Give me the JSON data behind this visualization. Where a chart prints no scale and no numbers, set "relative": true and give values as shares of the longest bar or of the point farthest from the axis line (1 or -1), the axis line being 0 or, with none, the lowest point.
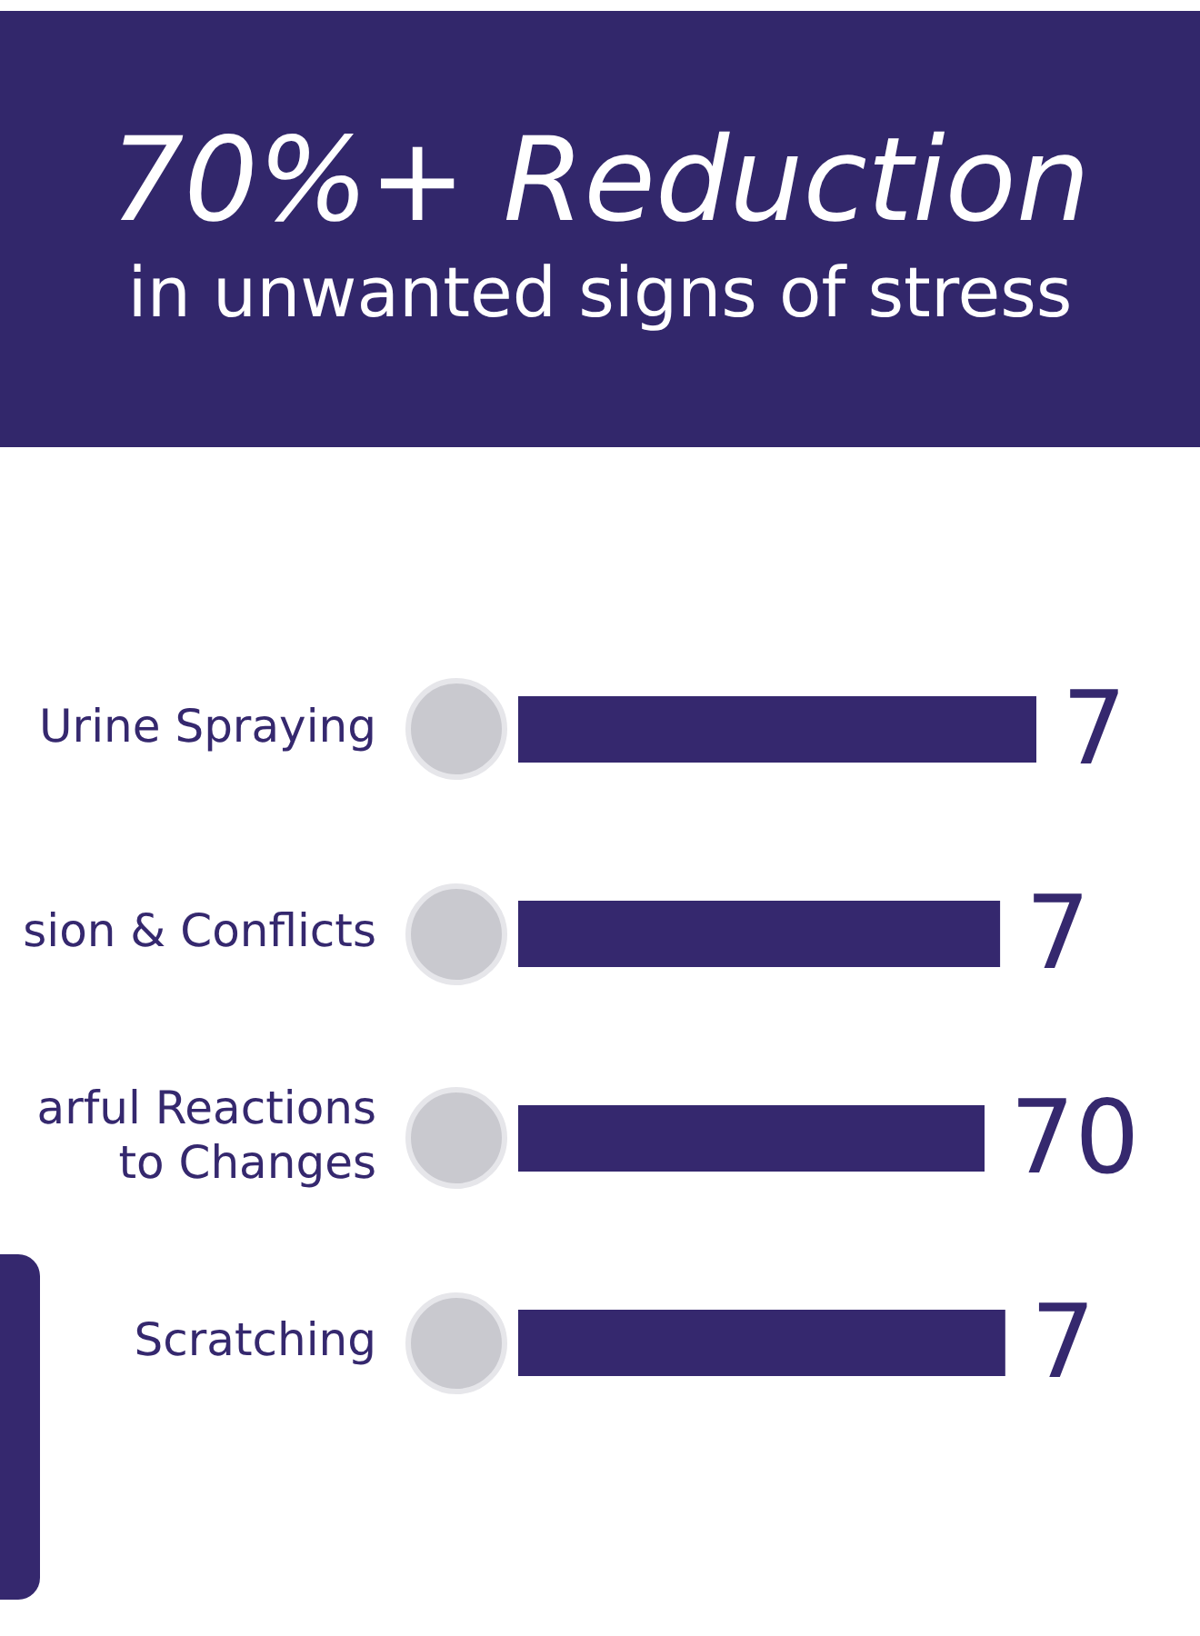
{
  "chart_data": {
    "type": "bar",
    "orientation": "horizontal",
    "relative": true,
    "title": "70%+ Reduction",
    "subtitle": "in unwanted signs of stress",
    "categories": [
      "Urine Spraying",
      "sion & Conflicts",
      "arful Reactions\nto Changes",
      "Scratching"
    ],
    "values": [
      1,
      0.93,
      0.9,
      0.94
    ],
    "color": "#35286e",
    "annotations": [
      "7",
      "7",
      "70",
      "7"
    ],
    "legend": false
  }
}
